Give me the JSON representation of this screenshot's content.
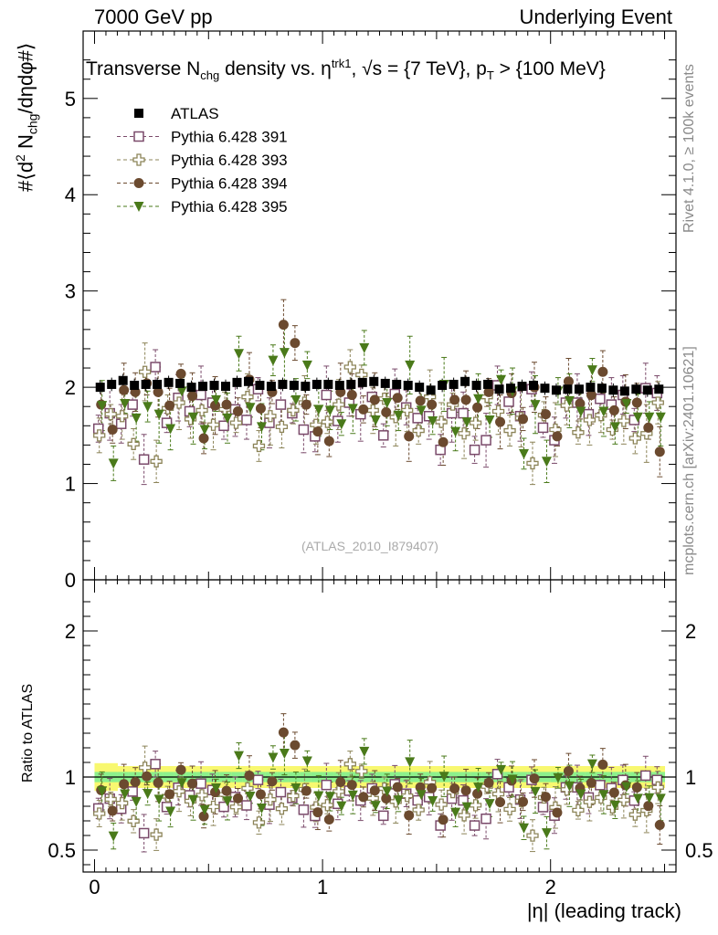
{
  "header": {
    "left": "7000 GeV pp",
    "right": "Underlying Event"
  },
  "side_labels": {
    "rivet": "Rivet 4.1.0, ≥ 100k events",
    "mcplots": "mcplots.cern.ch [arXiv:2401.10621]"
  },
  "chart_data": [
    {
      "type": "scatter",
      "title": "Transverse N_chg density vs. η^trk1, √s = {7 TeV}, p_T > {100 MeV}",
      "title_parts": {
        "a": "Transverse N",
        "b": "chg",
        "c": " density vs. ",
        "d": "η",
        "e": "trk1",
        "f": ", √s = {7 TeV}, p",
        "g": "T",
        "h": " > {100 MeV}"
      },
      "ylabel": "#⟨d² N_chg/dηdφ#⟩",
      "ylabel_parts": {
        "a": "#⟨d",
        "b": "2",
        "c": " N",
        "d": "chg",
        "e": "/dηdφ#⟩"
      },
      "xlabel": "|η| (leading track)",
      "watermark": "(ATLAS_2010_I879407)",
      "xlim": [
        -0.05,
        2.55
      ],
      "ylim": [
        0,
        5.7
      ],
      "yticks": [
        "1",
        "2",
        "3",
        "4",
        "5"
      ],
      "x": [
        0.025,
        0.075,
        0.125,
        0.175,
        0.225,
        0.275,
        0.325,
        0.375,
        0.425,
        0.475,
        0.525,
        0.575,
        0.625,
        0.675,
        0.725,
        0.775,
        0.825,
        0.875,
        0.925,
        0.975,
        1.025,
        1.075,
        1.125,
        1.175,
        1.225,
        1.275,
        1.325,
        1.375,
        1.425,
        1.475,
        1.525,
        1.575,
        1.625,
        1.675,
        1.725,
        1.775,
        1.825,
        1.875,
        1.925,
        1.975,
        2.025,
        2.075,
        2.125,
        2.175,
        2.225,
        2.275,
        2.325,
        2.375,
        2.425,
        2.475
      ],
      "legend": [
        "ATLAS",
        "Pythia 6.428 391",
        "Pythia 6.428 393",
        "Pythia 6.428 394",
        "Pythia 6.428 395"
      ],
      "series": [
        {
          "name": "ATLAS",
          "color": "#000000",
          "marker": "filled-square",
          "values": [
            2.0,
            2.03,
            2.07,
            2.02,
            2.03,
            2.03,
            2.05,
            2.04,
            2.0,
            2.01,
            2.02,
            2.01,
            2.05,
            2.06,
            2.02,
            2.01,
            2.03,
            2.02,
            2.01,
            2.03,
            2.03,
            2.02,
            2.03,
            2.05,
            2.06,
            2.04,
            2.03,
            2.02,
            2.0,
            1.97,
            2.02,
            2.03,
            2.06,
            2.02,
            2.03,
            1.98,
            1.99,
            2.01,
            2.02,
            1.99,
            1.97,
            1.98,
            1.98,
            2.0,
            1.99,
            1.97,
            1.96,
            1.98,
            1.97,
            1.98
          ]
        },
        {
          "name": "Pythia 6.428 391",
          "color": "#7a4a6a",
          "marker": "open-square",
          "values": [
            1.57,
            1.73,
            1.62,
            1.82,
            1.25,
            2.21,
            1.63,
            1.89,
            1.75,
            1.92,
            1.84,
            1.6,
            1.77,
            1.66,
            1.98,
            1.63,
            1.82,
            1.73,
            1.56,
            1.49,
            1.92,
            1.65,
            1.84,
            1.72,
            1.9,
            1.5,
            1.93,
            1.79,
            1.68,
            1.7,
            1.35,
            1.73,
            1.73,
            1.35,
            1.45,
            2.02,
            1.85,
            1.7,
            1.98,
            1.58,
            1.45,
            1.84,
            1.84,
            1.72,
            1.88,
            1.82,
            1.92,
            1.66,
            1.99,
            1.94
          ]
        },
        {
          "name": "Pythia 6.428 393",
          "color": "#8c8458",
          "marker": "open-cross",
          "values": [
            1.5,
            1.72,
            1.7,
            1.41,
            2.16,
            1.23,
            1.78,
            1.84,
            1.67,
            1.76,
            1.61,
            1.77,
            1.63,
            1.9,
            1.39,
            1.7,
            1.59,
            1.76,
            1.84,
            1.61,
            1.64,
            1.82,
            2.21,
            2.13,
            1.76,
            1.88,
            1.69,
            1.76,
            1.55,
            1.9,
            1.64,
            1.82,
            1.52,
            1.63,
            1.9,
            1.75,
            1.55,
            1.68,
            1.21,
            1.71,
            1.56,
            1.81,
            1.53,
            1.66,
            1.71,
            1.56,
            1.65,
            1.47,
            1.52,
            1.84
          ]
        },
        {
          "name": "Pythia 6.428 394",
          "color": "#6b4a2f",
          "marker": "filled-circle",
          "values": [
            1.82,
            1.56,
            1.97,
            1.95,
            2.04,
            1.95,
            1.81,
            2.14,
            1.91,
            1.47,
            1.81,
            1.82,
            1.75,
            2.08,
            1.78,
            1.95,
            2.65,
            2.46,
            1.82,
            1.54,
            1.44,
            1.95,
            1.92,
            1.77,
            1.87,
            1.74,
            1.89,
            1.49,
            1.86,
            1.82,
            1.43,
            1.87,
            1.87,
            1.79,
            1.95,
            1.64,
            1.94,
            1.67,
            2.0,
            1.72,
            1.49,
            2.06,
            1.83,
            1.92,
            2.16,
            1.76,
            1.85,
            1.84,
            1.58,
            1.33
          ]
        },
        {
          "name": "Pythia 6.428 395",
          "color": "#4a7a1a",
          "marker": "filled-triangle-down",
          "values": [
            1.81,
            1.21,
            1.83,
            1.68,
            1.8,
            1.72,
            1.57,
            1.96,
            1.69,
            1.56,
            1.87,
            1.68,
            2.35,
            1.79,
            1.59,
            2.28,
            2.36,
            1.87,
            2.23,
            1.77,
            1.76,
            1.62,
            1.78,
            2.41,
            1.66,
            1.84,
            1.71,
            2.23,
            1.76,
            1.65,
            2.03,
            1.54,
            1.64,
            1.88,
            1.66,
            2.08,
            1.96,
            1.31,
            1.82,
            1.23,
            1.96,
            1.86,
            1.75,
            2.18,
            1.75,
            1.59,
            1.83,
            1.69,
            1.69,
            1.69
          ]
        }
      ]
    },
    {
      "type": "scatter",
      "title": "Ratio to ATLAS",
      "ylabel": "Ratio to ATLAS",
      "xlabel": "|η| (leading track)",
      "xlim": [
        -0.05,
        2.55
      ],
      "ylim": [
        0.35,
        2.35
      ],
      "yticks": [
        "0.5",
        "1",
        "2"
      ],
      "xticks": [
        "0",
        "1",
        "2"
      ],
      "bands": {
        "stat_color": "#8cf08c",
        "total_color": "#f8f870"
      },
      "note": "Ratio points are each Pythia series divided by ATLAS values"
    }
  ]
}
